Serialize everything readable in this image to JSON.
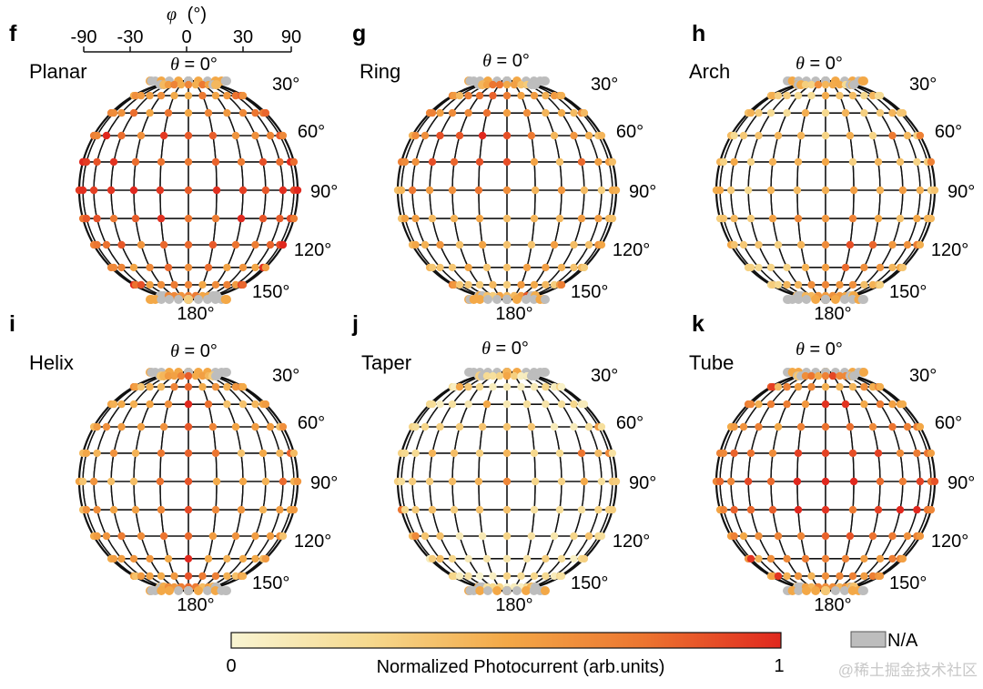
{
  "figure": {
    "theta_prefix": "θ",
    "theta_suffix": " = 0°",
    "theta_ticks": [
      "30°",
      "60°",
      "90°",
      "120°",
      "150°",
      "180°"
    ],
    "phi_axis": {
      "symbol": "φ",
      "unit": "(°)",
      "ticks": [
        "-90",
        "-30",
        "0",
        "30",
        "90"
      ]
    },
    "colorbar": {
      "label": "Normalized Photocurrent (arb.units)",
      "min_label": "0",
      "max_label": "1",
      "colors": [
        "#f8f4d2",
        "#f6d98e",
        "#f3a847",
        "#ec7530",
        "#e0281e"
      ],
      "na_label": "N/A",
      "na_color": "#bdbdbd"
    },
    "watermark": "@稀土掘金技术社区"
  },
  "chart_data": [
    {
      "type": "heatmap",
      "panel": "f",
      "name": "Planar",
      "theta_range": [
        0,
        180
      ],
      "phi_range": [
        -90,
        90
      ],
      "rows": 13,
      "cols": 13,
      "level": 0.55,
      "hot_pattern": "rows-90"
    },
    {
      "type": "heatmap",
      "panel": "g",
      "name": "Ring",
      "theta_range": [
        0,
        180
      ],
      "phi_range": [
        -90,
        90
      ],
      "rows": 13,
      "cols": 13,
      "level": 0.45,
      "hot_pattern": "upper-left"
    },
    {
      "type": "heatmap",
      "panel": "h",
      "name": "Arch",
      "theta_range": [
        0,
        180
      ],
      "phi_range": [
        -90,
        90
      ],
      "rows": 13,
      "cols": 13,
      "level": 0.35,
      "hot_pattern": "lower-right"
    },
    {
      "type": "heatmap",
      "panel": "i",
      "name": "Helix",
      "theta_range": [
        0,
        180
      ],
      "phi_range": [
        -90,
        90
      ],
      "rows": 13,
      "cols": 13,
      "level": 0.5,
      "hot_pattern": "center-column"
    },
    {
      "type": "heatmap",
      "panel": "j",
      "name": "Taper",
      "theta_range": [
        0,
        180
      ],
      "phi_range": [
        -90,
        90
      ],
      "rows": 13,
      "cols": 13,
      "level": 0.25,
      "hot_pattern": "equator-ring"
    },
    {
      "type": "heatmap",
      "panel": "k",
      "name": "Tube",
      "theta_range": [
        0,
        180
      ],
      "phi_range": [
        -90,
        90
      ],
      "rows": 13,
      "cols": 13,
      "level": 0.55,
      "hot_pattern": "center-band"
    }
  ]
}
